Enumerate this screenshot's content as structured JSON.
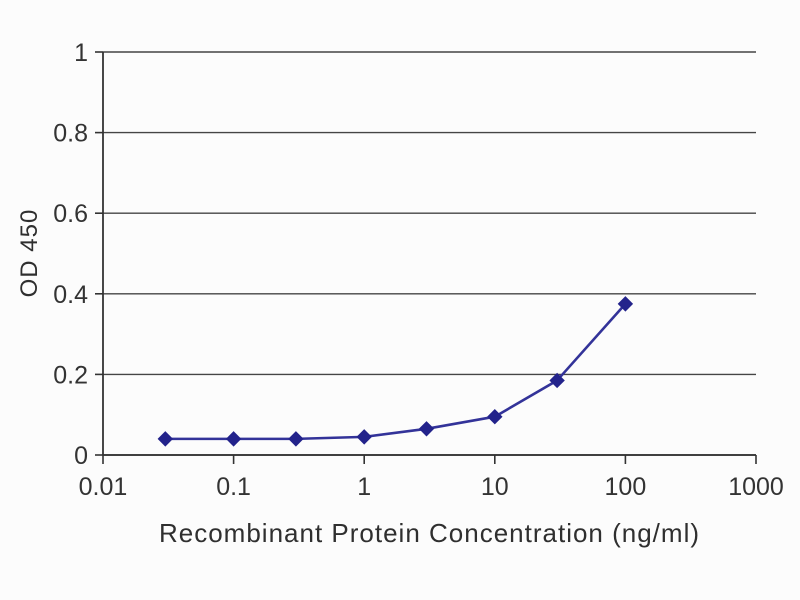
{
  "chart_data": {
    "type": "line",
    "title": "",
    "xlabel": "Recombinant Protein Concentration (ng/ml)",
    "ylabel": "OD 450",
    "x_scale": "log",
    "xlim": [
      0.01,
      1000
    ],
    "ylim": [
      0,
      1
    ],
    "x_ticks": [
      0.01,
      0.1,
      1,
      10,
      100,
      1000
    ],
    "x_tick_labels": [
      "0.01",
      "0.1",
      "1",
      "10",
      "100",
      "1000"
    ],
    "y_ticks": [
      0,
      0.2,
      0.4,
      0.6,
      0.8,
      1
    ],
    "y_tick_labels": [
      "0",
      "0.2",
      "0.4",
      "0.6",
      "0.8",
      "1"
    ],
    "grid": "horizontal",
    "legend": "none",
    "series": [
      {
        "name": "OD 450",
        "marker": "diamond",
        "x": [
          0.03,
          0.1,
          0.3,
          1,
          3,
          10,
          30,
          100
        ],
        "y": [
          0.04,
          0.04,
          0.04,
          0.045,
          0.065,
          0.095,
          0.185,
          0.375
        ]
      }
    ],
    "colors": {
      "line": "#333399",
      "marker": "#23238b",
      "grid": "#454545",
      "axis": "#333333",
      "tick_text": "#333333",
      "background": "#fcfcfc"
    }
  }
}
